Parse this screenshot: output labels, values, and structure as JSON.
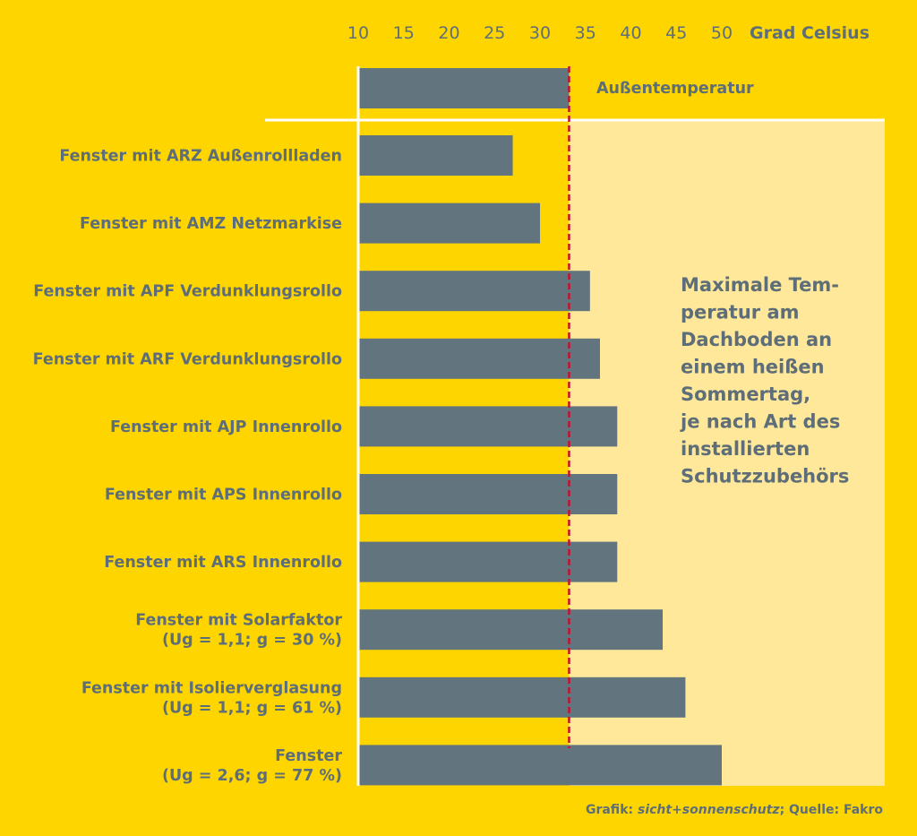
{
  "chart_data": {
    "type": "bar",
    "orientation": "horizontal",
    "unit_label": "Grad Celsius",
    "xlim": [
      10,
      50
    ],
    "ticks": [
      10,
      15,
      20,
      25,
      30,
      35,
      40,
      45,
      50
    ],
    "reference": {
      "label": "Außentemperatur",
      "value": 33.2
    },
    "categories": [
      [
        "Fenster mit ARZ Außenrollladen"
      ],
      [
        "Fenster mit AMZ Netzmarkise"
      ],
      [
        "Fenster mit APF Verdunklungsrollo"
      ],
      [
        "Fenster mit ARF Verdunklungsrollo"
      ],
      [
        "Fenster mit AJP Innenrollo"
      ],
      [
        "Fenster mit APS Innenrollo"
      ],
      [
        "Fenster mit ARS Innenrollo"
      ],
      [
        "Fenster mit Solarfaktor",
        "(Ug = 1,1; g = 30 %)"
      ],
      [
        "Fenster mit Isolierverglasung",
        "(Ug = 1,1; g = 61 %)"
      ],
      [
        "Fenster",
        "(Ug = 2,6; g = 77 %)"
      ]
    ],
    "values": [
      27,
      30,
      35.5,
      36.6,
      38.5,
      38.5,
      38.5,
      43.5,
      46,
      50
    ],
    "annotation": [
      "Maximale Tem-",
      "peratur am",
      "Dachboden an",
      "einem heißen",
      "Sommertag,",
      "je nach Art des",
      "installierten",
      "Schutzzubehörs"
    ],
    "colors": {
      "background": "#FFD500",
      "bar": "#62757F",
      "text": "#5E6E78",
      "panel": "#FFE89A",
      "reference_line": "#C8102E",
      "divider": "#FFFFFF"
    }
  },
  "footer": {
    "prefix": "Grafik: ",
    "source_italic": "sicht+sonnenschutz",
    "suffix": "; Quelle: Fakro"
  }
}
